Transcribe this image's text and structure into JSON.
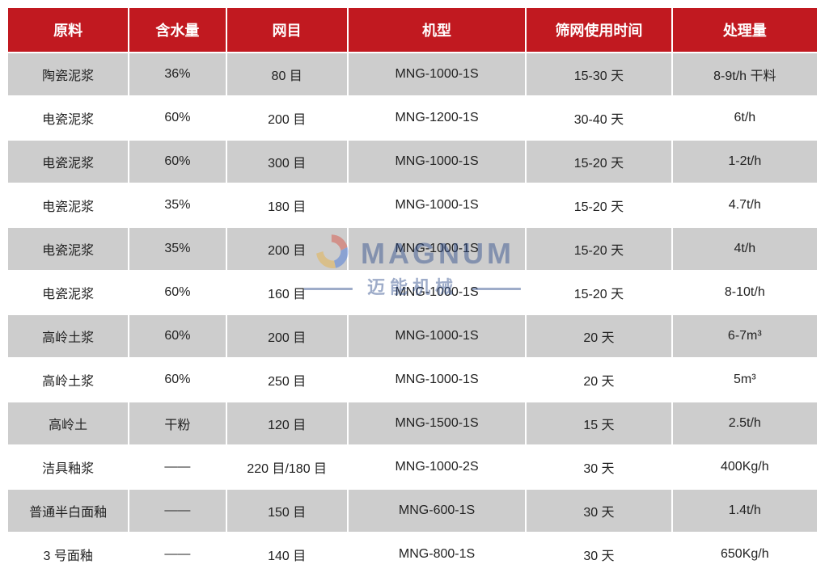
{
  "table": {
    "headers": [
      "原料",
      "含水量",
      "网目",
      "机型",
      "筛网使用时间",
      "处理量"
    ],
    "header_bg": "#c11920",
    "header_fg": "#ffffff",
    "row_bg_odd": "#cdcdcd",
    "row_bg_even": "#ffffff",
    "border_color": "#ffffff",
    "font_size_header": 18,
    "font_size_body": 16,
    "column_widths_pct": [
      15,
      12,
      15,
      22,
      18,
      18
    ],
    "rows": [
      [
        "陶瓷泥浆",
        "36%",
        "80 目",
        "MNG-1000-1S",
        "15-30 天",
        "8-9t/h 干料"
      ],
      [
        "电瓷泥浆",
        "60%",
        "200 目",
        "MNG-1200-1S",
        "30-40 天",
        "6t/h"
      ],
      [
        "电瓷泥浆",
        "60%",
        "300 目",
        "MNG-1000-1S",
        "15-20 天",
        "1-2t/h"
      ],
      [
        "电瓷泥浆",
        "35%",
        "180 目",
        "MNG-1000-1S",
        "15-20 天",
        "4.7t/h"
      ],
      [
        "电瓷泥浆",
        "35%",
        "200 目",
        "MNG-1000-1S",
        "15-20 天",
        "4t/h"
      ],
      [
        "电瓷泥浆",
        "60%",
        "160 目",
        "MNG-1000-1S",
        "15-20 天",
        "8-10t/h"
      ],
      [
        "高岭土浆",
        "60%",
        "200 目",
        "MNG-1000-1S",
        "20 天",
        "6-7m³"
      ],
      [
        "高岭土浆",
        "60%",
        "250 目",
        "MNG-1000-1S",
        "20 天",
        "5m³"
      ],
      [
        "高岭土",
        "干粉",
        "120 目",
        "MNG-1500-1S",
        "15 天",
        "2.5t/h"
      ],
      [
        "洁具釉浆",
        "——",
        "220 目/180 目",
        "MNG-1000-2S",
        "30 天",
        "400Kg/h"
      ],
      [
        "普通半白面釉",
        "——",
        "150 目",
        "MNG-600-1S",
        "30 天",
        "1.4t/h"
      ],
      [
        "3 号面釉",
        "——",
        "140 目",
        "MNG-800-1S",
        "30 天",
        "650Kg/h"
      ]
    ]
  },
  "watermark": {
    "line1": "MAGNUM",
    "line2": "迈能机械",
    "text_color": "#2a4a8a",
    "logo_colors": {
      "red": "#d94a3a",
      "blue": "#3a6fd9",
      "yellow": "#e8b03a"
    },
    "opacity": 0.45
  }
}
